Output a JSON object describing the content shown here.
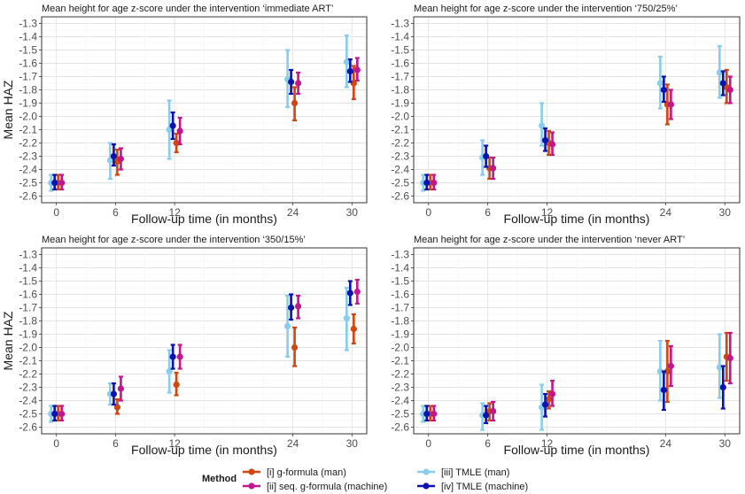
{
  "colors": {
    "g_formula_man": "#d1450f",
    "seq_g_formula_machine": "#c2178c",
    "tmle_man": "#87cdee",
    "tmle_machine": "#0a12b0"
  },
  "legend": {
    "title": "Method",
    "items": [
      {
        "key": "g_formula_man",
        "label": "[i] g-formula (man)"
      },
      {
        "key": "seq_g_formula_machine",
        "label": "[ii] seq. g-formula (machine)"
      },
      {
        "key": "tmle_man",
        "label": "[iii] TMLE (man)"
      },
      {
        "key": "tmle_machine",
        "label": "[iv] TMLE (machine)"
      }
    ]
  },
  "chart_data": [
    {
      "type": "scatter",
      "title": "Mean height for age z-score  under the intervention ‘immediate ART’",
      "xlabel": "Follow-up time (in months)",
      "ylabel": "Mean HAZ",
      "x_ticks": [
        0,
        6,
        12,
        24,
        30
      ],
      "y_ticks": [
        "-1.3",
        "-1.4",
        "-1.5",
        "-1.6",
        "-1.7",
        "-1.8",
        "-1.9",
        "-2.0",
        "-2.1",
        "-2.2",
        "-2.3",
        "-2.4",
        "-2.5",
        "-2.6"
      ],
      "ylim": [
        -2.65,
        -1.25
      ],
      "grid": true,
      "series": [
        {
          "name": "[i] g-formula (man)",
          "key": "g_formula_man",
          "points": [
            {
              "x": 0,
              "y": -2.5,
              "lo": -2.55,
              "hi": -2.44
            },
            {
              "x": 6,
              "y": -2.34,
              "lo": -2.44,
              "hi": -2.25
            },
            {
              "x": 12,
              "y": -2.2,
              "lo": -2.27,
              "hi": -2.13
            },
            {
              "x": 24,
              "y": -1.9,
              "lo": -2.03,
              "hi": -1.78
            },
            {
              "x": 30,
              "y": -1.75,
              "lo": -1.87,
              "hi": -1.62
            }
          ]
        },
        {
          "name": "[ii] seq. g-formula (machine)",
          "key": "seq_g_formula_machine",
          "points": [
            {
              "x": 0,
              "y": -2.5,
              "lo": -2.55,
              "hi": -2.44
            },
            {
              "x": 6,
              "y": -2.32,
              "lo": -2.4,
              "hi": -2.24
            },
            {
              "x": 12,
              "y": -2.11,
              "lo": -2.21,
              "hi": -2.01
            },
            {
              "x": 24,
              "y": -1.75,
              "lo": -1.83,
              "hi": -1.67
            },
            {
              "x": 30,
              "y": -1.65,
              "lo": -1.73,
              "hi": -1.56
            }
          ]
        },
        {
          "name": "[iii] TMLE (man)",
          "key": "tmle_man",
          "points": [
            {
              "x": 0,
              "y": -2.5,
              "lo": -2.56,
              "hi": -2.44
            },
            {
              "x": 6,
              "y": -2.33,
              "lo": -2.47,
              "hi": -2.2
            },
            {
              "x": 12,
              "y": -2.1,
              "lo": -2.32,
              "hi": -1.88
            },
            {
              "x": 24,
              "y": -1.72,
              "lo": -1.93,
              "hi": -1.5
            },
            {
              "x": 30,
              "y": -1.59,
              "lo": -1.78,
              "hi": -1.39
            }
          ]
        },
        {
          "name": "[iv] TMLE (machine)",
          "key": "tmle_machine",
          "points": [
            {
              "x": 0,
              "y": -2.5,
              "lo": -2.55,
              "hi": -2.44
            },
            {
              "x": 6,
              "y": -2.3,
              "lo": -2.37,
              "hi": -2.21
            },
            {
              "x": 12,
              "y": -2.07,
              "lo": -2.17,
              "hi": -1.97
            },
            {
              "x": 24,
              "y": -1.74,
              "lo": -1.83,
              "hi": -1.65
            },
            {
              "x": 30,
              "y": -1.66,
              "lo": -1.74,
              "hi": -1.57
            }
          ]
        }
      ]
    },
    {
      "type": "scatter",
      "title": "Mean height for age z-score under the intervention ‘750/25%’",
      "xlabel": "Follow-up time (in months)",
      "ylabel": "",
      "x_ticks": [
        0,
        6,
        12,
        24,
        30
      ],
      "y_ticks": [
        "-1.3",
        "-1.4",
        "-1.5",
        "-1.6",
        "-1.7",
        "-1.8",
        "-1.9",
        "-2.0",
        "-2.1",
        "-2.2",
        "-2.3",
        "-2.4",
        "-2.5",
        "-2.6"
      ],
      "ylim": [
        -2.65,
        -1.25
      ],
      "grid": true,
      "series": [
        {
          "name": "[i] g-formula (man)",
          "key": "g_formula_man",
          "points": [
            {
              "x": 0,
              "y": -2.5,
              "lo": -2.55,
              "hi": -2.44
            },
            {
              "x": 6,
              "y": -2.39,
              "lo": -2.47,
              "hi": -2.31
            },
            {
              "x": 12,
              "y": -2.2,
              "lo": -2.29,
              "hi": -2.11
            },
            {
              "x": 24,
              "y": -1.91,
              "lo": -2.06,
              "hi": -1.76
            },
            {
              "x": 30,
              "y": -1.78,
              "lo": -1.9,
              "hi": -1.65
            }
          ]
        },
        {
          "name": "[ii] seq. g-formula (machine)",
          "key": "seq_g_formula_machine",
          "points": [
            {
              "x": 0,
              "y": -2.5,
              "lo": -2.55,
              "hi": -2.44
            },
            {
              "x": 6,
              "y": -2.39,
              "lo": -2.47,
              "hi": -2.31
            },
            {
              "x": 12,
              "y": -2.21,
              "lo": -2.29,
              "hi": -2.12
            },
            {
              "x": 24,
              "y": -1.91,
              "lo": -2.02,
              "hi": -1.8
            },
            {
              "x": 30,
              "y": -1.8,
              "lo": -1.9,
              "hi": -1.7
            }
          ]
        },
        {
          "name": "[iii] TMLE (man)",
          "key": "tmle_man",
          "points": [
            {
              "x": 0,
              "y": -2.5,
              "lo": -2.56,
              "hi": -2.44
            },
            {
              "x": 6,
              "y": -2.31,
              "lo": -2.44,
              "hi": -2.18
            },
            {
              "x": 12,
              "y": -2.07,
              "lo": -2.22,
              "hi": -1.9
            },
            {
              "x": 24,
              "y": -1.75,
              "lo": -1.94,
              "hi": -1.55
            },
            {
              "x": 30,
              "y": -1.67,
              "lo": -1.86,
              "hi": -1.47
            }
          ]
        },
        {
          "name": "[iv] TMLE (machine)",
          "key": "tmle_machine",
          "points": [
            {
              "x": 0,
              "y": -2.5,
              "lo": -2.55,
              "hi": -2.44
            },
            {
              "x": 6,
              "y": -2.3,
              "lo": -2.38,
              "hi": -2.22
            },
            {
              "x": 12,
              "y": -2.18,
              "lo": -2.26,
              "hi": -2.09
            },
            {
              "x": 24,
              "y": -1.8,
              "lo": -1.89,
              "hi": -1.7
            },
            {
              "x": 30,
              "y": -1.75,
              "lo": -1.84,
              "hi": -1.66
            }
          ]
        }
      ]
    },
    {
      "type": "scatter",
      "title": "Mean height for age z-score under the intervention ‘350/15%’",
      "xlabel": "Follow-up time (in months)",
      "ylabel": "Mean HAZ",
      "x_ticks": [
        0,
        6,
        12,
        24,
        30
      ],
      "y_ticks": [
        "-1.3",
        "-1.4",
        "-1.5",
        "-1.6",
        "-1.7",
        "-1.8",
        "-1.9",
        "-2.0",
        "-2.1",
        "-2.2",
        "-2.3",
        "-2.4",
        "-2.5",
        "-2.6"
      ],
      "ylim": [
        -2.65,
        -1.25
      ],
      "grid": true,
      "series": [
        {
          "name": "[i] g-formula (man)",
          "key": "g_formula_man",
          "points": [
            {
              "x": 0,
              "y": -2.5,
              "lo": -2.55,
              "hi": -2.44
            },
            {
              "x": 6,
              "y": -2.45,
              "lo": -2.5,
              "hi": -2.39
            },
            {
              "x": 12,
              "y": -2.28,
              "lo": -2.36,
              "hi": -2.19
            },
            {
              "x": 24,
              "y": -2.0,
              "lo": -2.14,
              "hi": -1.85
            },
            {
              "x": 30,
              "y": -1.86,
              "lo": -1.97,
              "hi": -1.75
            }
          ]
        },
        {
          "name": "[ii] seq. g-formula (machine)",
          "key": "seq_g_formula_machine",
          "points": [
            {
              "x": 0,
              "y": -2.5,
              "lo": -2.55,
              "hi": -2.44
            },
            {
              "x": 6,
              "y": -2.31,
              "lo": -2.4,
              "hi": -2.22
            },
            {
              "x": 12,
              "y": -2.07,
              "lo": -2.16,
              "hi": -1.98
            },
            {
              "x": 24,
              "y": -1.69,
              "lo": -1.78,
              "hi": -1.61
            },
            {
              "x": 30,
              "y": -1.58,
              "lo": -1.67,
              "hi": -1.49
            }
          ]
        },
        {
          "name": "[iii] TMLE (man)",
          "key": "tmle_man",
          "points": [
            {
              "x": 0,
              "y": -2.5,
              "lo": -2.56,
              "hi": -2.44
            },
            {
              "x": 6,
              "y": -2.35,
              "lo": -2.43,
              "hi": -2.27
            },
            {
              "x": 12,
              "y": -2.18,
              "lo": -2.34,
              "hi": -2.02
            },
            {
              "x": 24,
              "y": -1.84,
              "lo": -2.07,
              "hi": -1.61
            },
            {
              "x": 30,
              "y": -1.78,
              "lo": -2.02,
              "hi": -1.55
            }
          ]
        },
        {
          "name": "[iv] TMLE (machine)",
          "key": "tmle_machine",
          "points": [
            {
              "x": 0,
              "y": -2.5,
              "lo": -2.55,
              "hi": -2.44
            },
            {
              "x": 6,
              "y": -2.35,
              "lo": -2.43,
              "hi": -2.27
            },
            {
              "x": 12,
              "y": -2.07,
              "lo": -2.16,
              "hi": -1.98
            },
            {
              "x": 24,
              "y": -1.7,
              "lo": -1.79,
              "hi": -1.6
            },
            {
              "x": 30,
              "y": -1.59,
              "lo": -1.68,
              "hi": -1.5
            }
          ]
        }
      ]
    },
    {
      "type": "scatter",
      "title": "Mean height for age z-score under the intervention ‘never ART’",
      "xlabel": "Follow-up time (in months)",
      "ylabel": "",
      "x_ticks": [
        0,
        6,
        12,
        24,
        30
      ],
      "y_ticks": [
        "-1.3",
        "-1.4",
        "-1.5",
        "-1.6",
        "-1.7",
        "-1.8",
        "-1.9",
        "-2.0",
        "-2.1",
        "-2.2",
        "-2.3",
        "-2.4",
        "-2.5",
        "-2.6"
      ],
      "ylim": [
        -2.65,
        -1.25
      ],
      "grid": true,
      "series": [
        {
          "name": "[i] g-formula (man)",
          "key": "g_formula_man",
          "points": [
            {
              "x": 0,
              "y": -2.5,
              "lo": -2.55,
              "hi": -2.44
            },
            {
              "x": 6,
              "y": -2.48,
              "lo": -2.55,
              "hi": -2.42
            },
            {
              "x": 12,
              "y": -2.39,
              "lo": -2.46,
              "hi": -2.33
            },
            {
              "x": 24,
              "y": -2.18,
              "lo": -2.41,
              "hi": -1.95
            },
            {
              "x": 30,
              "y": -2.07,
              "lo": -2.25,
              "hi": -1.89
            }
          ]
        },
        {
          "name": "[ii] seq. g-formula (machine)",
          "key": "seq_g_formula_machine",
          "points": [
            {
              "x": 0,
              "y": -2.5,
              "lo": -2.55,
              "hi": -2.44
            },
            {
              "x": 6,
              "y": -2.48,
              "lo": -2.55,
              "hi": -2.41
            },
            {
              "x": 12,
              "y": -2.35,
              "lo": -2.44,
              "hi": -2.25
            },
            {
              "x": 24,
              "y": -2.14,
              "lo": -2.29,
              "hi": -1.99
            },
            {
              "x": 30,
              "y": -2.08,
              "lo": -2.27,
              "hi": -1.89
            }
          ]
        },
        {
          "name": "[iii] TMLE (man)",
          "key": "tmle_man",
          "points": [
            {
              "x": 0,
              "y": -2.5,
              "lo": -2.56,
              "hi": -2.44
            },
            {
              "x": 6,
              "y": -2.51,
              "lo": -2.62,
              "hi": -2.42
            },
            {
              "x": 12,
              "y": -2.45,
              "lo": -2.62,
              "hi": -2.28
            },
            {
              "x": 24,
              "y": -2.18,
              "lo": -2.4,
              "hi": -1.95
            },
            {
              "x": 30,
              "y": -2.15,
              "lo": -2.38,
              "hi": -1.9
            }
          ]
        },
        {
          "name": "[iv] TMLE (machine)",
          "key": "tmle_machine",
          "points": [
            {
              "x": 0,
              "y": -2.5,
              "lo": -2.55,
              "hi": -2.44
            },
            {
              "x": 6,
              "y": -2.51,
              "lo": -2.57,
              "hi": -2.44
            },
            {
              "x": 12,
              "y": -2.43,
              "lo": -2.52,
              "hi": -2.35
            },
            {
              "x": 24,
              "y": -2.32,
              "lo": -2.47,
              "hi": -2.18
            },
            {
              "x": 30,
              "y": -2.3,
              "lo": -2.46,
              "hi": -2.14
            }
          ]
        }
      ]
    }
  ]
}
